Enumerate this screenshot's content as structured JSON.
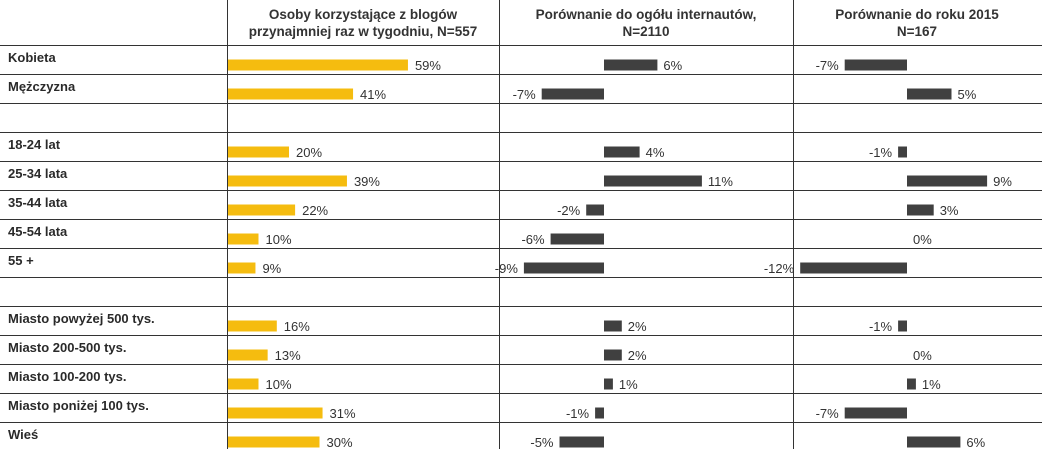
{
  "chart_data": {
    "type": "bar",
    "columns": [
      {
        "lines": [
          "Osoby korzystające z blogów",
          "przynajmniej raz w tygodniu, N=557"
        ]
      },
      {
        "lines": [
          "Porównanie do ogółu internautów,",
          "N=2110"
        ]
      },
      {
        "lines": [
          "Porównanie do roku 2015",
          "N=167"
        ]
      }
    ],
    "rows": [
      {
        "label": "Kobieta",
        "share": 59,
        "vs_internet": 6,
        "vs_2015": -7
      },
      {
        "label": "Mężczyzna",
        "share": 41,
        "vs_internet": -7,
        "vs_2015": 5
      },
      {
        "label": "",
        "share": null,
        "vs_internet": null,
        "vs_2015": null
      },
      {
        "label": "18-24 lat",
        "share": 20,
        "vs_internet": 4,
        "vs_2015": -1
      },
      {
        "label": "25-34 lata",
        "share": 39,
        "vs_internet": 11,
        "vs_2015": 9
      },
      {
        "label": "35-44 lata",
        "share": 22,
        "vs_internet": -2,
        "vs_2015": 3
      },
      {
        "label": "45-54 lata",
        "share": 10,
        "vs_internet": -6,
        "vs_2015": 0
      },
      {
        "label": "55 +",
        "share": 9,
        "vs_internet": -9,
        "vs_2015": -12
      },
      {
        "label": "",
        "share": null,
        "vs_internet": null,
        "vs_2015": null
      },
      {
        "label": "Miasto powyżej 500 tys.",
        "share": 16,
        "vs_internet": 2,
        "vs_2015": -1
      },
      {
        "label": "Miasto 200-500 tys.",
        "share": 13,
        "vs_internet": 2,
        "vs_2015": 0
      },
      {
        "label": "Miasto 100-200 tys.",
        "share": 10,
        "vs_internet": 1,
        "vs_2015": 1
      },
      {
        "label": "Miasto poniżej 100 tys.",
        "share": 31,
        "vs_internet": -1,
        "vs_2015": -7
      },
      {
        "label": "Wieś",
        "share": 30,
        "vs_internet": -5,
        "vs_2015": 6
      }
    ],
    "unit": "%",
    "colors": {
      "share": "#f5bc0f",
      "diff": "#404040",
      "grid": "#333333"
    }
  }
}
